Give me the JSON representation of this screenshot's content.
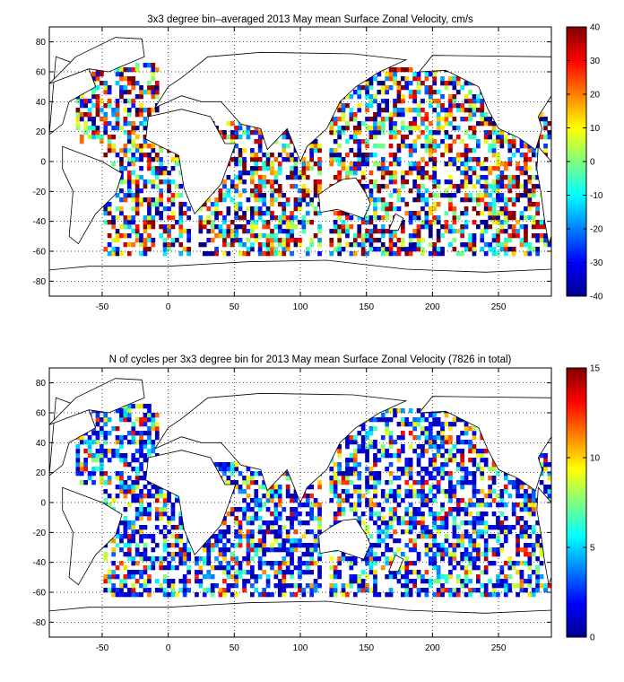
{
  "panels": [
    {
      "title": "3x3 degree bin–averaged 2013 May mean Surface Zonal Velocity, cm/s",
      "colorbar": {
        "min": -40,
        "max": 40,
        "ticks": [
          -40,
          -30,
          -20,
          -10,
          0,
          10,
          20,
          30,
          40
        ]
      }
    },
    {
      "title": "N of cycles per 3x3 degree bin for 2013 May mean Surface Zonal Velocity (7826 in total)",
      "colorbar": {
        "min": 0,
        "max": 15,
        "ticks": [
          0,
          5,
          10,
          15
        ]
      }
    }
  ],
  "chart_data": [
    {
      "type": "heatmap",
      "title": "3x3 degree bin–averaged 2013 May mean Surface Zonal Velocity, cm/s",
      "xlim": [
        -90,
        290
      ],
      "ylim": [
        -90,
        90
      ],
      "xticks": [
        -50,
        0,
        50,
        100,
        150,
        200,
        250
      ],
      "yticks": [
        -80,
        -60,
        -40,
        -20,
        0,
        20,
        40,
        60,
        80
      ],
      "grid": true,
      "bin_size_deg": 3,
      "colormap": "jet",
      "value_range": [
        -40,
        40
      ],
      "colorbar_ticks": [
        -40,
        -30,
        -20,
        -10,
        0,
        10,
        20,
        30,
        40
      ],
      "ocean_basins": [
        {
          "lon": [
            -70,
            -10
          ],
          "lat": [
            10,
            65
          ]
        },
        {
          "lon": [
            -50,
            15
          ],
          "lat": [
            -65,
            10
          ]
        },
        {
          "lon": [
            20,
            115
          ],
          "lat": [
            -65,
            25
          ]
        },
        {
          "lon": [
            120,
            280
          ],
          "lat": [
            -65,
            60
          ]
        },
        {
          "lon": [
            280,
            290
          ],
          "lat": [
            -60,
            30
          ]
        }
      ]
    },
    {
      "type": "heatmap",
      "title": "N of cycles per 3x3 degree bin for 2013 May mean Surface Zonal Velocity (7826 in total)",
      "total_cycles": 7826,
      "xlim": [
        -90,
        290
      ],
      "ylim": [
        -90,
        90
      ],
      "xticks": [
        -50,
        0,
        50,
        100,
        150,
        200,
        250
      ],
      "yticks": [
        -80,
        -60,
        -40,
        -20,
        0,
        20,
        40,
        60,
        80
      ],
      "grid": true,
      "bin_size_deg": 3,
      "colormap": "jet",
      "value_range": [
        0,
        15
      ],
      "colorbar_ticks": [
        0,
        5,
        10,
        15
      ]
    }
  ]
}
